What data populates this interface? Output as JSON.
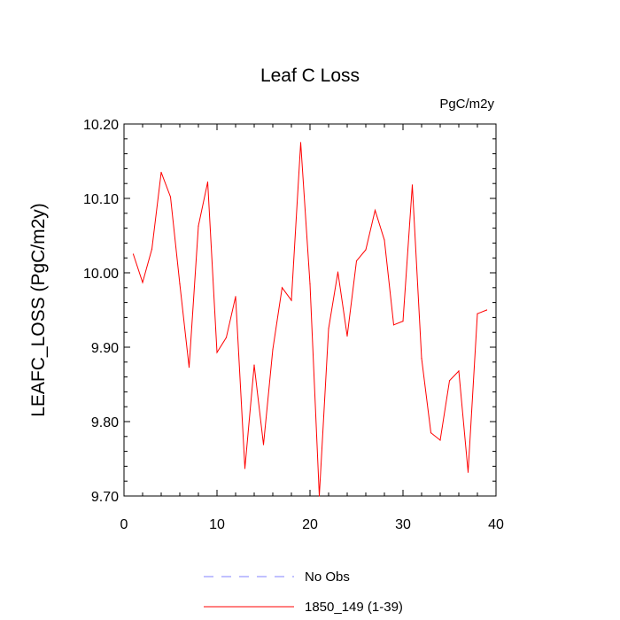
{
  "chart_data": {
    "type": "line",
    "title": "Leaf C Loss",
    "units": "PgC/m2y",
    "xlabel": "",
    "ylabel": "LEAFC_LOSS  (PgC/m2y)",
    "xlim": [
      0,
      40
    ],
    "ylim": [
      9.7,
      10.2
    ],
    "x_ticks": [
      0,
      10,
      20,
      30,
      40
    ],
    "x_tick_labels": [
      "0",
      "10",
      "20",
      "30",
      "40"
    ],
    "y_ticks": [
      9.7,
      9.8,
      9.9,
      10.0,
      10.1,
      10.2
    ],
    "y_tick_labels": [
      "9.70",
      "9.80",
      "9.90",
      "10.00",
      "10.10",
      "10.20"
    ],
    "grid": false,
    "legend": [
      {
        "label": "No Obs",
        "color": "#8080ff",
        "style": "dashed"
      },
      {
        "label": "1850_149 (1-39)",
        "color": "#ff0000",
        "style": "solid"
      }
    ],
    "series": [
      {
        "name": "1850_149 (1-39)",
        "color": "#ff0000",
        "x": [
          1,
          2,
          3,
          4,
          5,
          6,
          7,
          8,
          9,
          10,
          11,
          12,
          13,
          14,
          15,
          16,
          17,
          18,
          19,
          20,
          21,
          22,
          23,
          24,
          25,
          26,
          27,
          28,
          29,
          30,
          31,
          32,
          33,
          34,
          35,
          36,
          37,
          38,
          39
        ],
        "values": [
          10.025,
          9.987,
          10.032,
          10.135,
          10.102,
          9.985,
          9.873,
          10.063,
          10.122,
          9.893,
          9.913,
          9.968,
          9.737,
          9.876,
          9.769,
          9.897,
          9.98,
          9.963,
          10.175,
          9.985,
          9.7,
          9.925,
          10.001,
          9.915,
          10.016,
          10.031,
          10.084,
          10.044,
          9.93,
          9.935,
          10.118,
          9.885,
          9.785,
          9.775,
          9.855,
          9.868,
          9.732,
          9.945,
          9.95
        ]
      }
    ]
  }
}
